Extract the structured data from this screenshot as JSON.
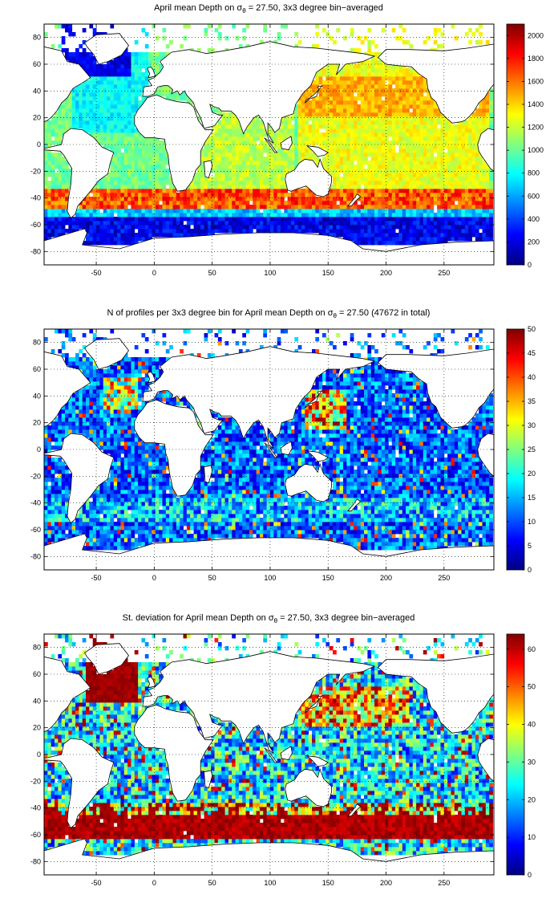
{
  "chart_data": [
    {
      "type": "heatmap",
      "title": {
        "pre": "April mean Depth on ",
        "sigma": "σ",
        "sub": "θ",
        "post": " = 27.50, 3x3 degree bin−averaged"
      },
      "xlim": [
        -95,
        293
      ],
      "ylim": [
        -90,
        90
      ],
      "x_ticks": [
        "-50",
        "0",
        "50",
        "100",
        "150",
        "200",
        "250"
      ],
      "y_ticks": [
        "80",
        "60",
        "40",
        "20",
        "0",
        "-20",
        "-40",
        "-60",
        "-80"
      ],
      "grid": true,
      "colorbar": {
        "min": 0,
        "max": 2100,
        "ticks": [
          "2000",
          "1800",
          "1600",
          "1400",
          "1200",
          "1000",
          "800",
          "600",
          "400",
          "200",
          "0"
        ],
        "tick_values": [
          2000,
          1800,
          1600,
          1400,
          1200,
          1000,
          800,
          600,
          400,
          200,
          0
        ]
      },
      "field": "depth"
    },
    {
      "type": "heatmap",
      "title": {
        "pre": "N of profiles per 3x3 degree bin for April mean Depth on ",
        "sigma": "σ",
        "sub": "θ",
        "post": " = 27.50 (47672 in total)"
      },
      "xlim": [
        -95,
        293
      ],
      "ylim": [
        -90,
        90
      ],
      "x_ticks": [
        "-50",
        "0",
        "50",
        "100",
        "150",
        "200",
        "250"
      ],
      "y_ticks": [
        "80",
        "60",
        "40",
        "20",
        "0",
        "-20",
        "-40",
        "-60",
        "-80"
      ],
      "grid": true,
      "colorbar": {
        "min": 0,
        "max": 50,
        "ticks": [
          "50",
          "45",
          "40",
          "35",
          "30",
          "25",
          "20",
          "15",
          "10",
          "5",
          "0"
        ],
        "tick_values": [
          50,
          45,
          40,
          35,
          30,
          25,
          20,
          15,
          10,
          5,
          0
        ]
      },
      "field": "count"
    },
    {
      "type": "heatmap",
      "title": {
        "pre": "St. deviation for April mean Depth on ",
        "sigma": "σ",
        "sub": "θ",
        "post": " = 27.50, 3x3 degree bin−averaged"
      },
      "xlim": [
        -95,
        293
      ],
      "ylim": [
        -90,
        90
      ],
      "x_ticks": [
        "-50",
        "0",
        "50",
        "100",
        "150",
        "200",
        "250"
      ],
      "y_ticks": [
        "80",
        "60",
        "40",
        "20",
        "0",
        "-20",
        "-40",
        "-60",
        "-80"
      ],
      "grid": true,
      "colorbar": {
        "min": 0,
        "max": 64,
        "ticks": [
          "60",
          "50",
          "40",
          "30",
          "20",
          "10",
          "0"
        ],
        "tick_values": [
          60,
          50,
          40,
          30,
          20,
          10,
          0
        ]
      },
      "field": "std"
    }
  ]
}
